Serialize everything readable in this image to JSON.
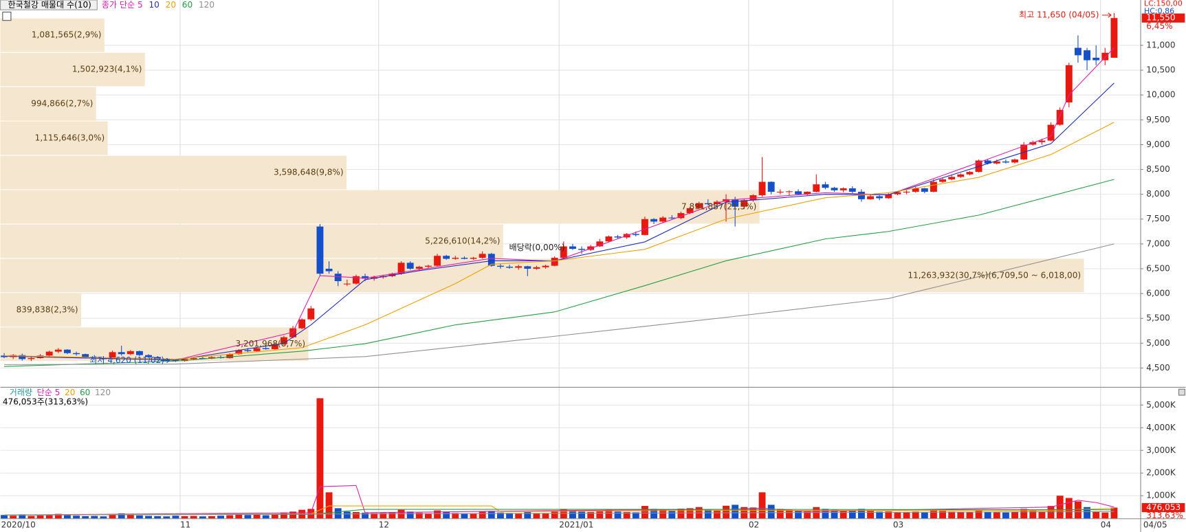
{
  "chart_data": {
    "type": "candlestick",
    "title": "한국철강 매물대 수(10)",
    "up_color": "#e8190f",
    "down_color": "#1450c8",
    "profile_color": "#f5e6cf",
    "xlim": [
      -0.42,
      125.9
    ],
    "ylim": [
      4150,
      11837
    ],
    "yticks": [
      {
        "value": 4500,
        "label": "4,500"
      },
      {
        "value": 5000,
        "label": "5,000"
      },
      {
        "value": 5500,
        "label": "5,500"
      },
      {
        "value": 6000,
        "label": "6,000"
      },
      {
        "value": 6500,
        "label": "6,500"
      },
      {
        "value": 7000,
        "label": "7,000"
      },
      {
        "value": 7500,
        "label": "7,500"
      },
      {
        "value": 8000,
        "label": "8,000"
      },
      {
        "value": 8500,
        "label": "8,500"
      },
      {
        "value": 9000,
        "label": "9,000"
      },
      {
        "value": 9500,
        "label": "9,500"
      },
      {
        "value": 10000,
        "label": "10,000"
      },
      {
        "value": 10500,
        "label": "10,500"
      },
      {
        "value": 11000,
        "label": "11,000"
      }
    ],
    "xlabels": [
      {
        "index": 0,
        "label": "2020/10"
      },
      {
        "index": 20,
        "label": "11"
      },
      {
        "index": 42,
        "label": "12"
      },
      {
        "index": 62,
        "label": "2021/01"
      },
      {
        "index": 83,
        "label": "02"
      },
      {
        "index": 99,
        "label": "03"
      },
      {
        "index": 122,
        "label": "04"
      }
    ],
    "last_date": "04/05",
    "candles": [
      [
        4750,
        4800,
        4700,
        4720
      ],
      [
        4720,
        4780,
        4680,
        4760
      ],
      [
        4760,
        4790,
        4650,
        4680
      ],
      [
        4680,
        4720,
        4640,
        4700
      ],
      [
        4700,
        4780,
        4690,
        4750
      ],
      [
        4750,
        4850,
        4730,
        4830
      ],
      [
        4830,
        4900,
        4800,
        4870
      ],
      [
        4870,
        4880,
        4780,
        4800
      ],
      [
        4800,
        4830,
        4750,
        4780
      ],
      [
        4780,
        4790,
        4700,
        4720
      ],
      [
        4720,
        4760,
        4680,
        4700
      ],
      [
        4700,
        4720,
        4650,
        4680
      ],
      [
        4680,
        4850,
        4670,
        4820
      ],
      [
        4820,
        4950,
        4750,
        4780
      ],
      [
        4780,
        4860,
        4760,
        4840
      ],
      [
        4840,
        4850,
        4740,
        4760
      ],
      [
        4760,
        4780,
        4700,
        4720
      ],
      [
        4720,
        4740,
        4660,
        4680
      ],
      [
        4680,
        4700,
        4640,
        4660
      ],
      [
        4660,
        4680,
        4620,
        4640
      ],
      [
        4640,
        4700,
        4630,
        4680
      ],
      [
        4680,
        4720,
        4660,
        4700
      ],
      [
        4700,
        4730,
        4680,
        4690
      ],
      [
        4690,
        4740,
        4680,
        4720
      ],
      [
        4720,
        4750,
        4690,
        4700
      ],
      [
        4700,
        4800,
        4690,
        4780
      ],
      [
        4780,
        4880,
        4770,
        4860
      ],
      [
        4860,
        4900,
        4820,
        4840
      ],
      [
        4840,
        4920,
        4830,
        4900
      ],
      [
        4900,
        4960,
        4870,
        4880
      ],
      [
        4880,
        5000,
        4870,
        4980
      ],
      [
        4980,
        5150,
        4960,
        5120
      ],
      [
        5120,
        5350,
        5100,
        5300
      ],
      [
        5300,
        5500,
        5280,
        5480
      ],
      [
        5480,
        5750,
        5450,
        5700
      ],
      [
        7350,
        7400,
        6350,
        6400
      ],
      [
        6500,
        6650,
        6400,
        6450
      ],
      [
        6400,
        6450,
        6150,
        6250
      ],
      [
        6200,
        6280,
        6150,
        6200
      ],
      [
        6200,
        6380,
        6180,
        6350
      ],
      [
        6350,
        6400,
        6250,
        6300
      ],
      [
        6300,
        6360,
        6260,
        6330
      ],
      [
        6330,
        6380,
        6300,
        6350
      ],
      [
        6350,
        6420,
        6330,
        6400
      ],
      [
        6400,
        6650,
        6380,
        6620
      ],
      [
        6620,
        6650,
        6480,
        6500
      ],
      [
        6500,
        6560,
        6460,
        6540
      ],
      [
        6540,
        6580,
        6500,
        6560
      ],
      [
        6560,
        6800,
        6550,
        6760
      ],
      [
        6760,
        6780,
        6680,
        6700
      ],
      [
        6700,
        6760,
        6680,
        6720
      ],
      [
        6720,
        6750,
        6690,
        6700
      ],
      [
        6700,
        6740,
        6680,
        6720
      ],
      [
        6720,
        6850,
        6700,
        6800
      ],
      [
        6800,
        6820,
        6540,
        6560
      ],
      [
        6560,
        6600,
        6500,
        6540
      ],
      [
        6540,
        6580,
        6500,
        6520
      ],
      [
        6520,
        6580,
        6480,
        6550
      ],
      [
        6550,
        6560,
        6350,
        6500
      ],
      [
        6500,
        6560,
        6480,
        6530
      ],
      [
        6530,
        6580,
        6500,
        6560
      ],
      [
        6560,
        6750,
        6550,
        6720
      ],
      [
        6720,
        7050,
        6700,
        6950
      ],
      [
        6950,
        7000,
        6880,
        6900
      ],
      [
        6900,
        6950,
        6800,
        6880
      ],
      [
        6880,
        6980,
        6860,
        6950
      ],
      [
        6950,
        7100,
        6940,
        7050
      ],
      [
        7050,
        7170,
        7030,
        7150
      ],
      [
        7150,
        7180,
        7100,
        7130
      ],
      [
        7130,
        7220,
        7100,
        7200
      ],
      [
        7200,
        7250,
        7150,
        7180
      ],
      [
        7180,
        7550,
        7170,
        7500
      ],
      [
        7500,
        7520,
        7400,
        7450
      ],
      [
        7450,
        7560,
        7430,
        7530
      ],
      [
        7530,
        7580,
        7500,
        7520
      ],
      [
        7520,
        7650,
        7500,
        7620
      ],
      [
        7620,
        7750,
        7600,
        7720
      ],
      [
        7720,
        7850,
        7700,
        7820
      ],
      [
        7820,
        7900,
        7780,
        7800
      ],
      [
        7800,
        7880,
        7750,
        7850
      ],
      [
        7850,
        8000,
        7450,
        7900
      ],
      [
        7900,
        7950,
        7350,
        7750
      ],
      [
        7750,
        7900,
        7700,
        7880
      ],
      [
        7880,
        8000,
        7850,
        7980
      ],
      [
        7980,
        8750,
        7950,
        8250
      ],
      [
        8250,
        8260,
        8000,
        8050
      ],
      [
        8050,
        8100,
        8000,
        8050
      ],
      [
        8050,
        8080,
        7980,
        8060
      ],
      [
        8060,
        8100,
        7990,
        8000
      ],
      [
        8000,
        8060,
        7980,
        8050
      ],
      [
        8050,
        8400,
        8040,
        8200
      ],
      [
        8200,
        8250,
        8100,
        8130
      ],
      [
        8130,
        8150,
        8050,
        8080
      ],
      [
        8080,
        8140,
        8040,
        8120
      ],
      [
        8120,
        8160,
        8020,
        8050
      ],
      [
        8050,
        8100,
        7850,
        7900
      ],
      [
        7900,
        8000,
        7890,
        7960
      ],
      [
        7960,
        7980,
        7880,
        7920
      ],
      [
        7920,
        8020,
        7910,
        8000
      ],
      [
        8000,
        8060,
        7980,
        8040
      ],
      [
        8040,
        8080,
        8000,
        8050
      ],
      [
        8050,
        8150,
        8030,
        8120
      ],
      [
        8120,
        8130,
        8020,
        8050
      ],
      [
        8050,
        8300,
        8040,
        8250
      ],
      [
        8250,
        8330,
        8230,
        8300
      ],
      [
        8300,
        8380,
        8280,
        8350
      ],
      [
        8350,
        8420,
        8330,
        8400
      ],
      [
        8400,
        8470,
        8380,
        8450
      ],
      [
        8450,
        8700,
        8440,
        8680
      ],
      [
        8680,
        8700,
        8600,
        8620
      ],
      [
        8620,
        8700,
        8600,
        8660
      ],
      [
        8660,
        8700,
        8620,
        8640
      ],
      [
        8640,
        8720,
        8620,
        8700
      ],
      [
        8700,
        9050,
        8690,
        9000
      ],
      [
        9000,
        9080,
        8980,
        9050
      ],
      [
        9050,
        9120,
        9000,
        9080
      ],
      [
        9080,
        9450,
        9070,
        9400
      ],
      [
        9400,
        9750,
        9380,
        9700
      ],
      [
        9850,
        10650,
        9750,
        10600
      ],
      [
        10950,
        11200,
        10650,
        10800
      ],
      [
        10900,
        10950,
        10500,
        10700
      ],
      [
        10750,
        11000,
        10600,
        10700
      ],
      [
        10700,
        10950,
        10600,
        10850
      ],
      [
        10750,
        11650,
        10750,
        11550
      ]
    ],
    "ma": [
      {
        "name": "종가 단순 5",
        "color": "#e020b0",
        "x": [
          0,
          19,
          32,
          35,
          40,
          54,
          61,
          80,
          91,
          98,
          108,
          116,
          118,
          123
        ],
        "values": [
          4740,
          4660,
          5220,
          6360,
          6310,
          6710,
          6650,
          7880,
          8030,
          7990,
          8640,
          9170,
          10000,
          10950
        ]
      },
      {
        "name": "10",
        "color": "#2030c0",
        "x": [
          0,
          19,
          31,
          34,
          40,
          46,
          54,
          61,
          71,
          80,
          91,
          98,
          108,
          116,
          123
        ],
        "values": [
          4740,
          4660,
          5000,
          5370,
          6280,
          6460,
          6660,
          6660,
          7040,
          7840,
          8000,
          7990,
          8560,
          9020,
          10240
        ]
      },
      {
        "name": "20",
        "color": "#f0a000",
        "x": [
          0,
          19,
          33,
          40,
          50,
          54,
          61,
          71,
          80,
          91,
          98,
          108,
          116,
          123
        ],
        "values": [
          4750,
          4680,
          4910,
          5370,
          6200,
          6590,
          6660,
          6890,
          7500,
          7930,
          8030,
          8340,
          8800,
          9450
        ]
      },
      {
        "name": "60",
        "color": "#20a040",
        "x": [
          0,
          19,
          33,
          40,
          50,
          61,
          71,
          80,
          91,
          98,
          108,
          123
        ],
        "values": [
          4530,
          4640,
          4840,
          4990,
          5370,
          5630,
          6160,
          6660,
          7100,
          7250,
          7580,
          8300
        ]
      },
      {
        "name": "120",
        "color": "#909090",
        "x": [
          0,
          19,
          40,
          61,
          80,
          98,
          123
        ],
        "values": [
          4570,
          4580,
          4730,
          5140,
          5520,
          5900,
          7000
        ]
      }
    ],
    "profile": {
      "edges": [
        4635,
        5326.5,
        6018,
        6709.5,
        7401,
        8092.5,
        8784,
        9475.5,
        10167,
        10858.5,
        11550
      ],
      "xlim": [
        0,
        11850000
      ],
      "bars": [
        {
          "volume": 3201968,
          "label": "3,201,968(8,7%)"
        },
        {
          "volume": 839838,
          "label": "839,838(2,3%)"
        },
        {
          "volume": 11263932,
          "label": "11,263,932(30,7%)(6,709,50 ~ 6,018,00)"
        },
        {
          "volume": 5226610,
          "label": "5,226,610(14,2%)"
        },
        {
          "volume": 7891887,
          "label": "7,891,887(21,5%)"
        },
        {
          "volume": 3598648,
          "label": "3,598,648(9,8%)"
        },
        {
          "volume": 1115646,
          "label": "1,115,646(3,0%)"
        },
        {
          "volume": 994866,
          "label": "994,866(2,7%)"
        },
        {
          "volume": 1502923,
          "label": "1,502,923(4,1%)"
        },
        {
          "volume": 1081565,
          "label": "1,081,565(2,9%)"
        }
      ]
    },
    "high_note": "최고 11,650 (04/05)",
    "low_note": "최저 4,620 (11/02)",
    "ex_div_note": "배당락(0,00%)",
    "lc": "LC:150,00",
    "hc": "HC:0,86",
    "price_label": "11,550",
    "change_label": "6,45%",
    "volume": {
      "name": "거래량",
      "ylim": [
        0,
        5700000
      ],
      "yticks": [
        {
          "value": 1000000,
          "label": "1,000K"
        },
        {
          "value": 2000000,
          "label": "2,000K"
        },
        {
          "value": 3000000,
          "label": "3,000K"
        },
        {
          "value": 4000000,
          "label": "4,000K"
        },
        {
          "value": 5000000,
          "label": "5,000K"
        }
      ],
      "values": [
        150000,
        120000,
        180000,
        110000,
        130000,
        160000,
        200000,
        140000,
        120000,
        100000,
        110000,
        90000,
        170000,
        220000,
        150000,
        130000,
        110000,
        100000,
        90000,
        120000,
        100000,
        110000,
        90000,
        100000,
        120000,
        140000,
        180000,
        150000,
        160000,
        140000,
        200000,
        260000,
        300000,
        380000,
        420000,
        5300000,
        1150000,
        450000,
        300000,
        280000,
        250000,
        230000,
        240000,
        260000,
        380000,
        300000,
        250000,
        230000,
        350000,
        280000,
        240000,
        220000,
        210000,
        300000,
        330000,
        260000,
        240000,
        230000,
        280000,
        220000,
        230000,
        320000,
        420000,
        350000,
        300000,
        280000,
        320000,
        380000,
        300000,
        280000,
        270000,
        550000,
        420000,
        380000,
        350000,
        430000,
        450000,
        500000,
        380000,
        360000,
        560000,
        600000,
        500000,
        480000,
        1150000,
        600000,
        420000,
        380000,
        350000,
        330000,
        500000,
        420000,
        380000,
        340000,
        360000,
        420000,
        330000,
        300000,
        310000,
        280000,
        270000,
        300000,
        260000,
        380000,
        330000,
        300000,
        280000,
        270000,
        340000,
        290000,
        270000,
        260000,
        280000,
        420000,
        330000,
        300000,
        550000,
        1000000,
        900000,
        750000,
        500000,
        300000,
        260000,
        476053
      ],
      "ma": [
        {
          "name": "단순 5",
          "color": "#e020b0",
          "x": [
            0,
            34,
            35,
            39,
            40,
            62,
            80,
            84,
            89,
            116,
            119,
            121,
            123
          ],
          "values": [
            150000,
            250000,
            1400000,
            1450000,
            250000,
            350000,
            400000,
            450000,
            300000,
            500000,
            800000,
            700000,
            500000
          ]
        },
        {
          "name": "20",
          "color": "#f0a000",
          "x": [
            0,
            34,
            36,
            54,
            55,
            80,
            116,
            123
          ],
          "values": [
            150000,
            200000,
            550000,
            550000,
            300000,
            350000,
            350000,
            450000
          ]
        },
        {
          "name": "60",
          "color": "#20a040",
          "x": [
            0,
            34,
            40,
            80,
            123
          ],
          "values": [
            150000,
            180000,
            400000,
            400000,
            380000
          ]
        },
        {
          "name": "120",
          "color": "#909090",
          "x": [
            0,
            123
          ],
          "values": [
            150000,
            300000
          ]
        }
      ],
      "info": "476,053주(313,63%)",
      "box_label": "476,053",
      "ratio_label": "313,63%"
    }
  }
}
